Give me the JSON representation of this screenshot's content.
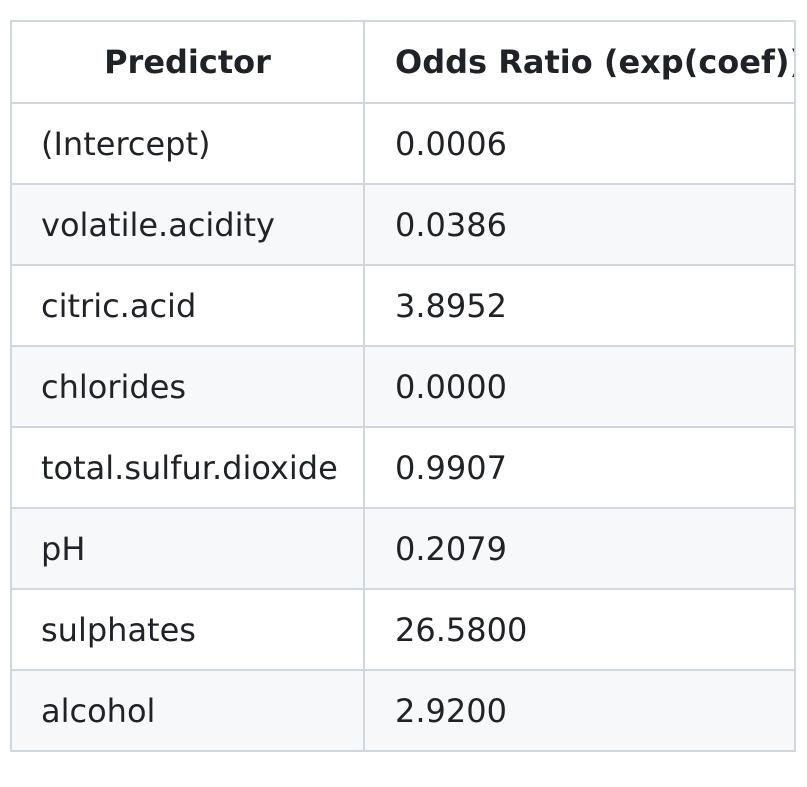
{
  "table": {
    "headers": [
      "Predictor",
      "Odds Ratio (exp(coef))"
    ],
    "rows": [
      [
        "(Intercept)",
        "0.0006"
      ],
      [
        "volatile.acidity",
        "0.0386"
      ],
      [
        "citric.acid",
        "3.8952"
      ],
      [
        "chlorides",
        "0.0000"
      ],
      [
        "total.sulfur.dioxide",
        "0.9907"
      ],
      [
        "pH",
        "0.2079"
      ],
      [
        "sulphates",
        "26.5800"
      ],
      [
        "alcohol",
        "2.9200"
      ]
    ]
  },
  "colors": {
    "border": "#d0d7de",
    "stripe": "#f6f8fa",
    "text": "#1f2328"
  }
}
